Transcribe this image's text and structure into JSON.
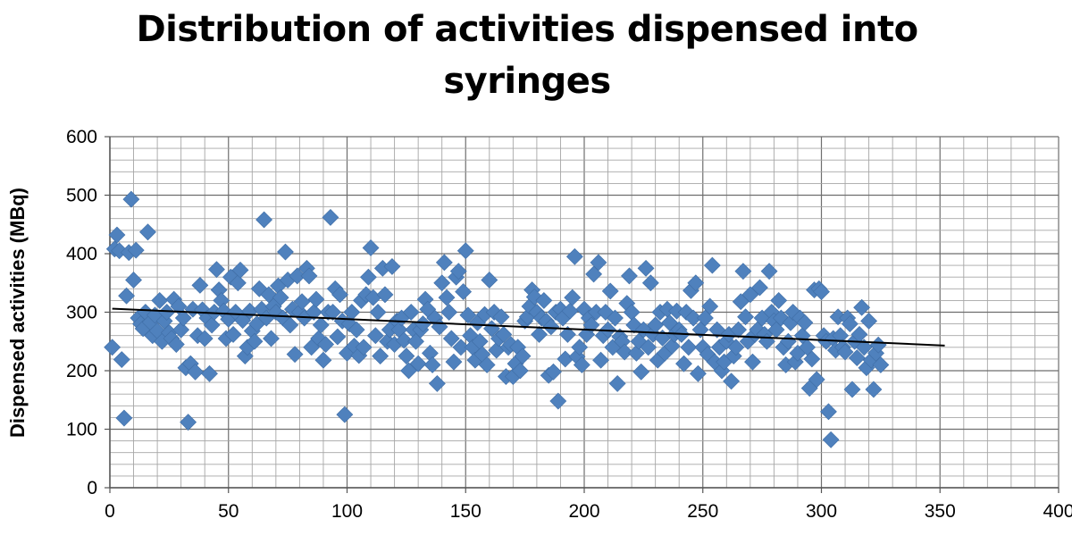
{
  "chart_data": {
    "type": "scatter",
    "title": "Distribution of activities dispensed into syringes",
    "xlabel": "",
    "ylabel": "Dispensed activities (MBq)",
    "xlim": [
      0,
      400
    ],
    "ylim": [
      0,
      600
    ],
    "x_ticks": [
      0,
      50,
      100,
      150,
      200,
      250,
      300,
      350,
      400
    ],
    "y_ticks": [
      0,
      100,
      200,
      300,
      400,
      500,
      600
    ],
    "x_minor_step": 10,
    "y_minor_step": 20,
    "grid": true,
    "legend": "none",
    "marker": "diamond",
    "marker_color": "#4f81bd",
    "trendline": {
      "type": "linear",
      "x_start": 1,
      "y_start": 306,
      "x_end": 352,
      "y_end": 243,
      "color": "#000000"
    },
    "points": [
      [
        1,
        240
      ],
      [
        2,
        408
      ],
      [
        3,
        432
      ],
      [
        4,
        405
      ],
      [
        5,
        219
      ],
      [
        6,
        119
      ],
      [
        7,
        328
      ],
      [
        8,
        402
      ],
      [
        9,
        493
      ],
      [
        10,
        355
      ],
      [
        11,
        406
      ],
      [
        12,
        290
      ],
      [
        13,
        280
      ],
      [
        14,
        272
      ],
      [
        15,
        300
      ],
      [
        16,
        437
      ],
      [
        17,
        283
      ],
      [
        18,
        260
      ],
      [
        19,
        295
      ],
      [
        20,
        268
      ],
      [
        21,
        320
      ],
      [
        22,
        250
      ],
      [
        23,
        285
      ],
      [
        24,
        300
      ],
      [
        25,
        265
      ],
      [
        26,
        255
      ],
      [
        27,
        322
      ],
      [
        28,
        245
      ],
      [
        29,
        310
      ],
      [
        30,
        270
      ],
      [
        31,
        290
      ],
      [
        32,
        205
      ],
      [
        33,
        112
      ],
      [
        34,
        212
      ],
      [
        35,
        305
      ],
      [
        36,
        198
      ],
      [
        37,
        260
      ],
      [
        38,
        346
      ],
      [
        39,
        304
      ],
      [
        40,
        255
      ],
      [
        41,
        290
      ],
      [
        42,
        195
      ],
      [
        43,
        278
      ],
      [
        44,
        300
      ],
      [
        45,
        373
      ],
      [
        46,
        338
      ],
      [
        47,
        320
      ],
      [
        48,
        302
      ],
      [
        49,
        255
      ],
      [
        50,
        288
      ],
      [
        51,
        360
      ],
      [
        52,
        262
      ],
      [
        53,
        300
      ],
      [
        54,
        350
      ],
      [
        55,
        372
      ],
      [
        56,
        286
      ],
      [
        57,
        225
      ],
      [
        58,
        240
      ],
      [
        59,
        302
      ],
      [
        60,
        268
      ],
      [
        61,
        250
      ],
      [
        62,
        280
      ],
      [
        63,
        340
      ],
      [
        64,
        305
      ],
      [
        65,
        458
      ],
      [
        66,
        290
      ],
      [
        67,
        330
      ],
      [
        68,
        255
      ],
      [
        69,
        310
      ],
      [
        70,
        300
      ],
      [
        71,
        345
      ],
      [
        72,
        325
      ],
      [
        73,
        290
      ],
      [
        74,
        403
      ],
      [
        75,
        355
      ],
      [
        76,
        278
      ],
      [
        77,
        305
      ],
      [
        78,
        228
      ],
      [
        79,
        362
      ],
      [
        80,
        300
      ],
      [
        81,
        318
      ],
      [
        82,
        290
      ],
      [
        83,
        375
      ],
      [
        84,
        362
      ],
      [
        85,
        240
      ],
      [
        86,
        300
      ],
      [
        87,
        322
      ],
      [
        88,
        255
      ],
      [
        89,
        278
      ],
      [
        90,
        218
      ],
      [
        91,
        245
      ],
      [
        92,
        300
      ],
      [
        93,
        462
      ],
      [
        94,
        300
      ],
      [
        95,
        340
      ],
      [
        96,
        258
      ],
      [
        97,
        330
      ],
      [
        98,
        285
      ],
      [
        99,
        125
      ],
      [
        100,
        230
      ],
      [
        101,
        280
      ],
      [
        102,
        300
      ],
      [
        103,
        242
      ],
      [
        104,
        270
      ],
      [
        105,
        226
      ],
      [
        106,
        320
      ],
      [
        107,
        240
      ],
      [
        108,
        330
      ],
      [
        109,
        360
      ],
      [
        110,
        410
      ],
      [
        111,
        325
      ],
      [
        112,
        260
      ],
      [
        113,
        300
      ],
      [
        114,
        225
      ],
      [
        115,
        375
      ],
      [
        116,
        330
      ],
      [
        117,
        250
      ],
      [
        118,
        270
      ],
      [
        119,
        378
      ],
      [
        120,
        245
      ],
      [
        121,
        285
      ],
      [
        122,
        270
      ],
      [
        123,
        290
      ],
      [
        124,
        252
      ],
      [
        125,
        225
      ],
      [
        126,
        200
      ],
      [
        127,
        300
      ],
      [
        128,
        270
      ],
      [
        129,
        250
      ],
      [
        130,
        212
      ],
      [
        131,
        270
      ],
      [
        132,
        280
      ],
      [
        133,
        322
      ],
      [
        134,
        305
      ],
      [
        135,
        230
      ],
      [
        136,
        210
      ],
      [
        137,
        290
      ],
      [
        138,
        178
      ],
      [
        139,
        275
      ],
      [
        140,
        350
      ],
      [
        141,
        385
      ],
      [
        142,
        325
      ],
      [
        143,
        300
      ],
      [
        144,
        255
      ],
      [
        145,
        215
      ],
      [
        146,
        360
      ],
      [
        147,
        370
      ],
      [
        148,
        240
      ],
      [
        149,
        335
      ],
      [
        150,
        405
      ],
      [
        151,
        295
      ],
      [
        152,
        260
      ],
      [
        153,
        240
      ],
      [
        154,
        218
      ],
      [
        155,
        282
      ],
      [
        156,
        250
      ],
      [
        157,
        228
      ],
      [
        158,
        296
      ],
      [
        159,
        210
      ],
      [
        160,
        355
      ],
      [
        161,
        272
      ],
      [
        162,
        300
      ],
      [
        163,
        235
      ],
      [
        164,
        255
      ],
      [
        165,
        292
      ],
      [
        166,
        262
      ],
      [
        167,
        190
      ],
      [
        168,
        240
      ],
      [
        169,
        245
      ],
      [
        170,
        190
      ],
      [
        171,
        212
      ],
      [
        172,
        240
      ],
      [
        173,
        200
      ],
      [
        174,
        225
      ],
      [
        175,
        285
      ],
      [
        176,
        292
      ],
      [
        177,
        310
      ],
      [
        178,
        338
      ],
      [
        179,
        326
      ],
      [
        180,
        300
      ],
      [
        181,
        262
      ],
      [
        182,
        290
      ],
      [
        183,
        320
      ],
      [
        184,
        285
      ],
      [
        185,
        192
      ],
      [
        186,
        275
      ],
      [
        187,
        198
      ],
      [
        188,
        300
      ],
      [
        189,
        148
      ],
      [
        190,
        305
      ],
      [
        191,
        290
      ],
      [
        192,
        220
      ],
      [
        193,
        262
      ],
      [
        194,
        302
      ],
      [
        195,
        325
      ],
      [
        196,
        395
      ],
      [
        197,
        224
      ],
      [
        198,
        240
      ],
      [
        199,
        210
      ],
      [
        200,
        305
      ],
      [
        201,
        262
      ],
      [
        202,
        290
      ],
      [
        203,
        278
      ],
      [
        204,
        365
      ],
      [
        205,
        300
      ],
      [
        206,
        385
      ],
      [
        207,
        218
      ],
      [
        208,
        260
      ],
      [
        209,
        300
      ],
      [
        210,
        270
      ],
      [
        211,
        336
      ],
      [
        212,
        240
      ],
      [
        213,
        290
      ],
      [
        214,
        178
      ],
      [
        215,
        258
      ],
      [
        216,
        250
      ],
      [
        217,
        232
      ],
      [
        218,
        315
      ],
      [
        219,
        362
      ],
      [
        220,
        300
      ],
      [
        221,
        278
      ],
      [
        222,
        230
      ],
      [
        223,
        250
      ],
      [
        224,
        198
      ],
      [
        225,
        270
      ],
      [
        226,
        375
      ],
      [
        227,
        240
      ],
      [
        228,
        350
      ],
      [
        229,
        262
      ],
      [
        230,
        278
      ],
      [
        231,
        218
      ],
      [
        232,
        300
      ],
      [
        233,
        256
      ],
      [
        234,
        230
      ],
      [
        235,
        305
      ],
      [
        236,
        282
      ],
      [
        237,
        242
      ],
      [
        238,
        262
      ],
      [
        239,
        302
      ],
      [
        240,
        270
      ],
      [
        241,
        262
      ],
      [
        242,
        212
      ],
      [
        243,
        300
      ],
      [
        244,
        240
      ],
      [
        245,
        337
      ],
      [
        246,
        290
      ],
      [
        247,
        350
      ],
      [
        248,
        195
      ],
      [
        249,
        270
      ],
      [
        250,
        240
      ],
      [
        251,
        290
      ],
      [
        252,
        228
      ],
      [
        253,
        310
      ],
      [
        254,
        380
      ],
      [
        255,
        215
      ],
      [
        256,
        270
      ],
      [
        257,
        240
      ],
      [
        258,
        200
      ],
      [
        259,
        215
      ],
      [
        260,
        250
      ],
      [
        261,
        262
      ],
      [
        262,
        182
      ],
      [
        263,
        225
      ],
      [
        264,
        240
      ],
      [
        265,
        270
      ],
      [
        266,
        318
      ],
      [
        267,
        370
      ],
      [
        268,
        292
      ],
      [
        269,
        250
      ],
      [
        270,
        330
      ],
      [
        271,
        215
      ],
      [
        272,
        262
      ],
      [
        273,
        270
      ],
      [
        274,
        342
      ],
      [
        275,
        290
      ],
      [
        276,
        262
      ],
      [
        277,
        250
      ],
      [
        278,
        370
      ],
      [
        279,
        300
      ],
      [
        280,
        285
      ],
      [
        281,
        270
      ],
      [
        282,
        320
      ],
      [
        283,
        290
      ],
      [
        284,
        240
      ],
      [
        285,
        210
      ],
      [
        286,
        250
      ],
      [
        287,
        282
      ],
      [
        288,
        300
      ],
      [
        289,
        215
      ],
      [
        290,
        230
      ],
      [
        291,
        290
      ],
      [
        292,
        260
      ],
      [
        293,
        282
      ],
      [
        294,
        240
      ],
      [
        295,
        170
      ],
      [
        296,
        220
      ],
      [
        297,
        338
      ],
      [
        298,
        185
      ],
      [
        299,
        340
      ],
      [
        300,
        335
      ],
      [
        301,
        260
      ],
      [
        302,
        250
      ],
      [
        303,
        130
      ],
      [
        304,
        82
      ],
      [
        305,
        255
      ],
      [
        306,
        235
      ],
      [
        307,
        292
      ],
      [
        308,
        260
      ],
      [
        309,
        240
      ],
      [
        310,
        232
      ],
      [
        311,
        290
      ],
      [
        312,
        280
      ],
      [
        313,
        168
      ],
      [
        314,
        250
      ],
      [
        315,
        222
      ],
      [
        316,
        262
      ],
      [
        317,
        308
      ],
      [
        318,
        240
      ],
      [
        319,
        205
      ],
      [
        320,
        285
      ],
      [
        321,
        218
      ],
      [
        322,
        168
      ],
      [
        323,
        230
      ],
      [
        324,
        244
      ],
      [
        325,
        210
      ]
    ]
  }
}
